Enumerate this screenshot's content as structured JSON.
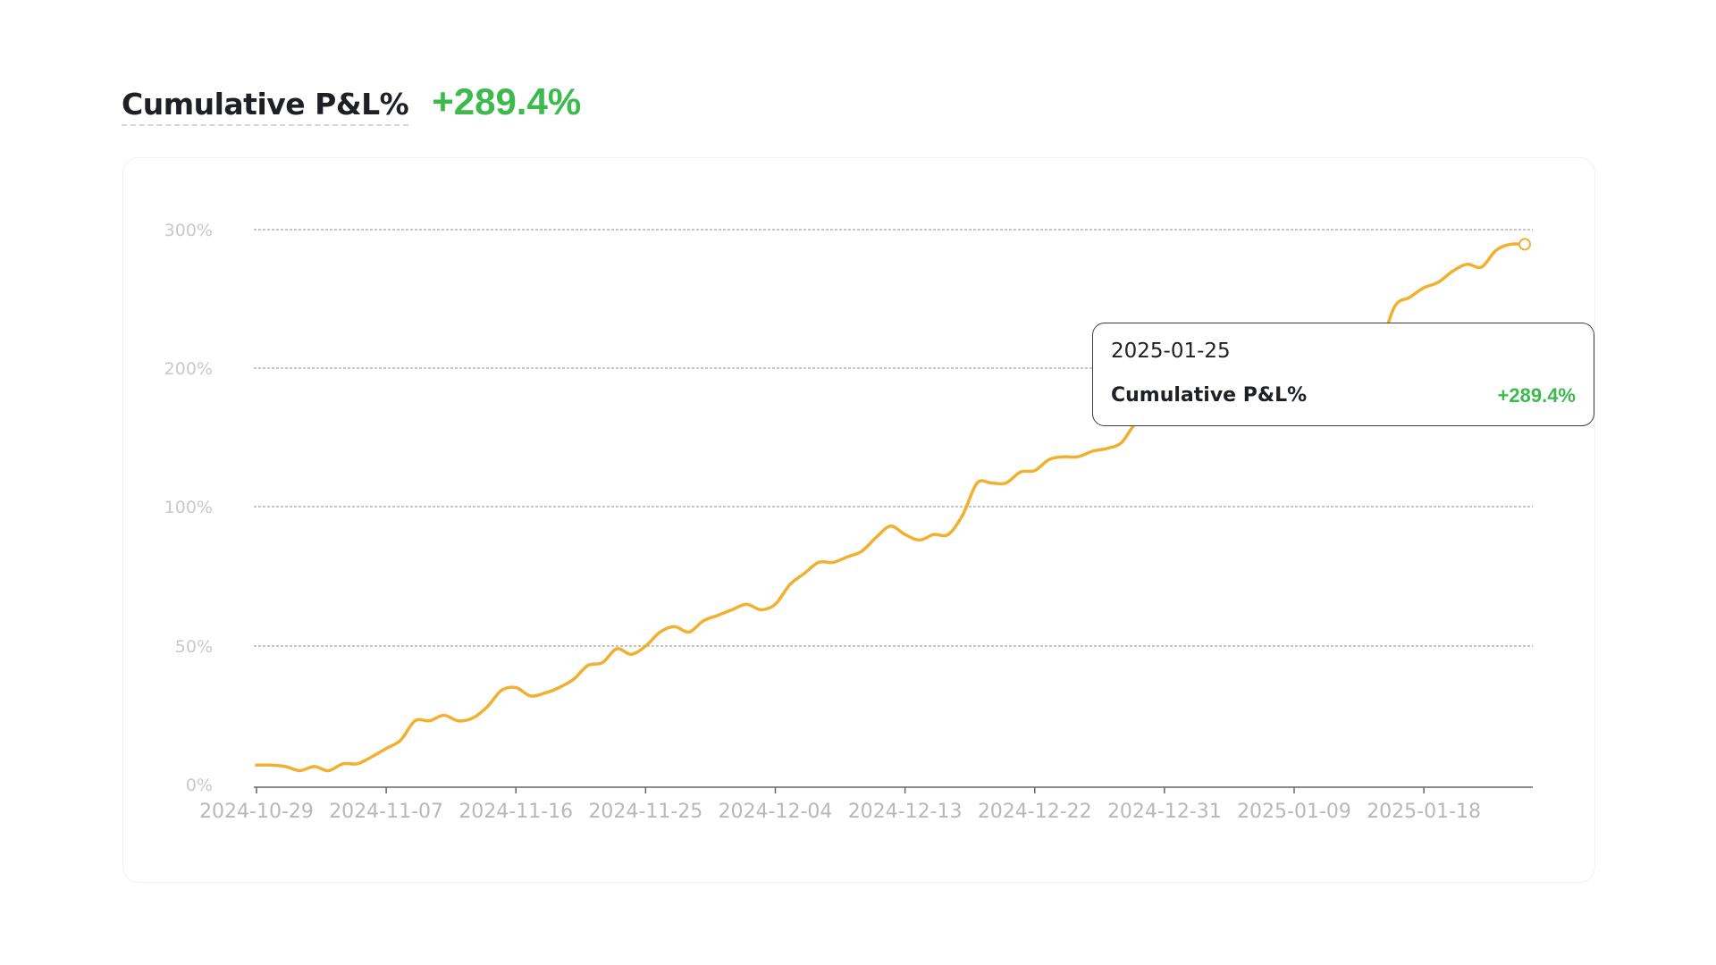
{
  "header": {
    "title": "Cumulative P&L%",
    "total": "+289.4%"
  },
  "tooltip": {
    "date": "2025-01-25",
    "label": "Cumulative P&L%",
    "value": "+289.4%"
  },
  "colors": {
    "line": "#f0b030",
    "positive": "#3dba4e",
    "grid": "#8c8c8c",
    "axis": "#666666"
  },
  "chart_data": {
    "type": "line",
    "xlabel": "",
    "ylabel": "",
    "grid": true,
    "legend": "none",
    "y_ticks": [
      0,
      50,
      100,
      200,
      300
    ],
    "y_tick_labels": [
      "0%",
      "50%",
      "100%",
      "200%",
      "300%"
    ],
    "x_tick_labels": [
      "2024-10-29",
      "2024-11-07",
      "2024-11-16",
      "2024-11-25",
      "2024-12-04",
      "2024-12-13",
      "2024-12-22",
      "2024-12-31",
      "2025-01-09",
      "2025-01-18"
    ],
    "xlim": [
      "2024-10-29",
      "2025-01-25"
    ],
    "series": [
      {
        "name": "Cumulative P&L%",
        "x": [
          "2024-10-29",
          "2024-10-30",
          "2024-10-31",
          "2024-11-01",
          "2024-11-02",
          "2024-11-03",
          "2024-11-04",
          "2024-11-05",
          "2024-11-06",
          "2024-11-07",
          "2024-11-08",
          "2024-11-09",
          "2024-11-10",
          "2024-11-11",
          "2024-11-12",
          "2024-11-13",
          "2024-11-14",
          "2024-11-15",
          "2024-11-16",
          "2024-11-17",
          "2024-11-18",
          "2024-11-19",
          "2024-11-20",
          "2024-11-21",
          "2024-11-22",
          "2024-11-23",
          "2024-11-24",
          "2024-11-25",
          "2024-11-26",
          "2024-11-27",
          "2024-11-28",
          "2024-11-29",
          "2024-11-30",
          "2024-12-01",
          "2024-12-02",
          "2024-12-03",
          "2024-12-04",
          "2024-12-05",
          "2024-12-06",
          "2024-12-07",
          "2024-12-08",
          "2024-12-09",
          "2024-12-10",
          "2024-12-11",
          "2024-12-12",
          "2024-12-13",
          "2024-12-14",
          "2024-12-15",
          "2024-12-16",
          "2024-12-17",
          "2024-12-18",
          "2024-12-19",
          "2024-12-20",
          "2024-12-21",
          "2024-12-22",
          "2024-12-23",
          "2024-12-24",
          "2024-12-25",
          "2024-12-26",
          "2024-12-27",
          "2024-12-28",
          "2024-12-29",
          "2024-12-30",
          "2024-12-31",
          "2025-01-01",
          "2025-01-02",
          "2025-01-03",
          "2025-01-04",
          "2025-01-05",
          "2025-01-06",
          "2025-01-07",
          "2025-01-08",
          "2025-01-09",
          "2025-01-10",
          "2025-01-11",
          "2025-01-12",
          "2025-01-13",
          "2025-01-14",
          "2025-01-15",
          "2025-01-16",
          "2025-01-17",
          "2025-01-18",
          "2025-01-19",
          "2025-01-20",
          "2025-01-21",
          "2025-01-22",
          "2025-01-23",
          "2025-01-24",
          "2025-01-25"
        ],
        "values": [
          7,
          7,
          6.5,
          5,
          6.5,
          5,
          7.5,
          7.5,
          10,
          13,
          16,
          23,
          23,
          25,
          23,
          24,
          28,
          34,
          35,
          32,
          33,
          35,
          38,
          43,
          44,
          49,
          47,
          50,
          55,
          57,
          55,
          59,
          61,
          63,
          65,
          63,
          65,
          72,
          76,
          80,
          80,
          82,
          84,
          89,
          93,
          90,
          88,
          90,
          90,
          97,
          117,
          117,
          117,
          125,
          126,
          134,
          136,
          136,
          140,
          142,
          146,
          160,
          163,
          160,
          167,
          167,
          162,
          172,
          175,
          175,
          178,
          213,
          201,
          209,
          214,
          203,
          212,
          210,
          218,
          245,
          251,
          258,
          262,
          270,
          275,
          273,
          285,
          289.4,
          289.4
        ]
      }
    ]
  }
}
